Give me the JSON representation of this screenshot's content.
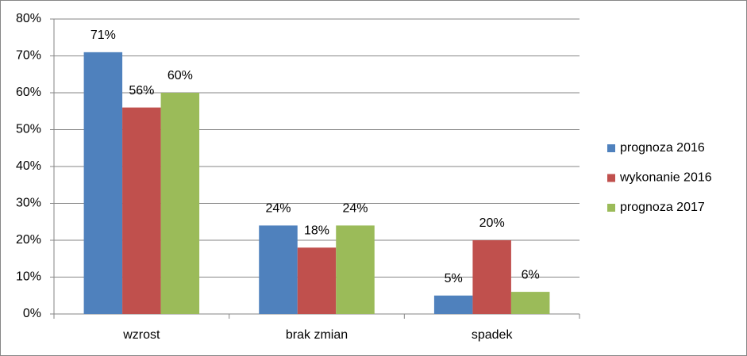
{
  "chart_data": {
    "type": "bar",
    "categories": [
      "wzrost",
      "brak zmian",
      "spadek"
    ],
    "series": [
      {
        "name": "prognoza 2016",
        "color": "#4f81bd",
        "values": [
          71,
          24,
          5
        ],
        "value_labels": [
          "71%",
          "24%",
          "5%"
        ]
      },
      {
        "name": "wykonanie 2016",
        "color": "#c0504d",
        "values": [
          56,
          18,
          20
        ],
        "value_labels": [
          "56%",
          "18%",
          "20%"
        ]
      },
      {
        "name": "prognoza 2017",
        "color": "#9bbb59",
        "values": [
          60,
          24,
          6
        ],
        "value_labels": [
          "60%",
          "24%",
          "6%"
        ]
      }
    ],
    "ylim": [
      0,
      80
    ],
    "yticks": [
      {
        "value": 0,
        "label": "0%"
      },
      {
        "value": 10,
        "label": "10%"
      },
      {
        "value": 20,
        "label": "20%"
      },
      {
        "value": 30,
        "label": "30%"
      },
      {
        "value": 40,
        "label": "40%"
      },
      {
        "value": 50,
        "label": "50%"
      },
      {
        "value": 60,
        "label": "60%"
      },
      {
        "value": 70,
        "label": "70%"
      },
      {
        "value": 80,
        "label": "80%"
      }
    ],
    "grid": true,
    "legend": "right"
  }
}
